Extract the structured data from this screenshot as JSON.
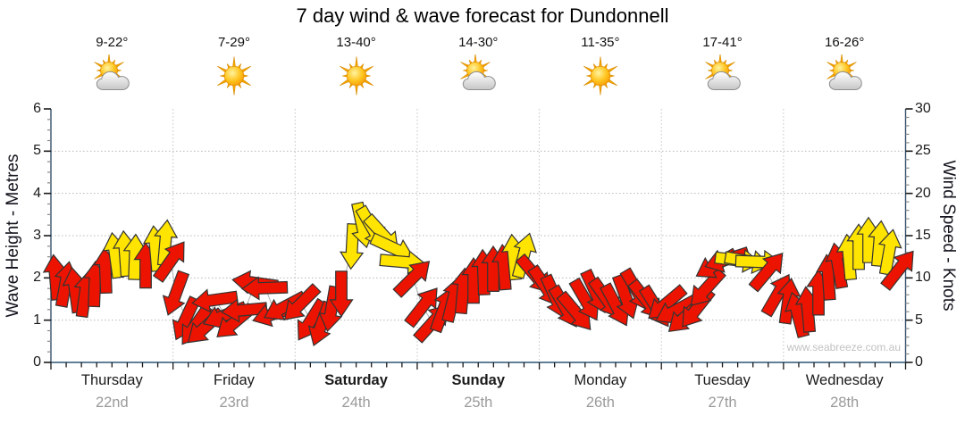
{
  "title": "7 day wind & wave forecast for Dundonnell",
  "watermark": "www.seabreeze.com.au",
  "axes": {
    "left_title": "Wave Height - Metres",
    "right_title": "Wind Speed - Knots",
    "left_ticks": [
      0,
      1,
      2,
      3,
      4,
      5,
      6
    ],
    "right_ticks": [
      0,
      5,
      10,
      15,
      20,
      25,
      30
    ]
  },
  "days": [
    {
      "name": "Thursday",
      "date": "22nd",
      "temp": "9-22°",
      "icon": "sun-cloud",
      "bold": false
    },
    {
      "name": "Friday",
      "date": "23rd",
      "temp": "7-29°",
      "icon": "sun",
      "bold": false
    },
    {
      "name": "Saturday",
      "date": "24th",
      "temp": "13-40°",
      "icon": "sun",
      "bold": true
    },
    {
      "name": "Sunday",
      "date": "25th",
      "temp": "14-30°",
      "icon": "sun-cloud",
      "bold": true
    },
    {
      "name": "Monday",
      "date": "26th",
      "temp": "11-35°",
      "icon": "sun",
      "bold": false
    },
    {
      "name": "Tuesday",
      "date": "27th",
      "temp": "17-41°",
      "icon": "sun-cloud",
      "bold": false
    },
    {
      "name": "Wednesday",
      "date": "28th",
      "temp": "16-26°",
      "icon": "sun-cloud",
      "bold": false
    }
  ],
  "colors": {
    "arrow_red": "#ec1400",
    "arrow_yellow": "#ffe400",
    "arrow_outline": "#333333",
    "axis_line": "#2e5577",
    "side_axis_line": "#38516b",
    "gridline": "#b8b8b8",
    "connector": "#b0b0b0",
    "date_text": "#9a9a9a",
    "watermark_text": "#c2c2c2"
  },
  "chart_data": {
    "type": "wind-arrow-timeseries",
    "title": "7 day wind & wave forecast for Dundonnell",
    "y_left": {
      "label": "Wave Height - Metres",
      "range": [
        0,
        6
      ],
      "gridlines": [
        1,
        2,
        3,
        4,
        5
      ]
    },
    "y_right": {
      "label": "Wind Speed - Knots",
      "range": [
        0,
        30
      ],
      "gridlines": [
        5,
        10,
        15,
        20,
        25
      ]
    },
    "x_categories": [
      "Thursday 22nd",
      "Friday 23rd",
      "Saturday 24th",
      "Sunday 25th",
      "Monday 26th",
      "Tuesday 27th",
      "Wednesday 28th"
    ],
    "arrow_format": [
      "x_px",
      "wind_speed_knots",
      "dir_deg_clockwise_0_is_up",
      "color r=red y=yellow"
    ],
    "arrows": [
      [
        62,
        10.0,
        355,
        "r"
      ],
      [
        73,
        9.2,
        10,
        "r"
      ],
      [
        84,
        8.5,
        352,
        "r"
      ],
      [
        95,
        8.0,
        8,
        "r"
      ],
      [
        106,
        9.2,
        2,
        "r"
      ],
      [
        118,
        10.8,
        358,
        "r"
      ],
      [
        129,
        12.6,
        352,
        "y"
      ],
      [
        140,
        12.8,
        356,
        "y"
      ],
      [
        151,
        12.4,
        2,
        "y"
      ],
      [
        163,
        11.4,
        0,
        "r"
      ],
      [
        174,
        13.4,
        355,
        "y"
      ],
      [
        185,
        14.1,
        5,
        "y"
      ],
      [
        191,
        12.0,
        35,
        "r"
      ],
      [
        197,
        8.2,
        200,
        "r"
      ],
      [
        208,
        5.2,
        205,
        "r"
      ],
      [
        219,
        4.4,
        215,
        "r"
      ],
      [
        230,
        4.2,
        228,
        "r"
      ],
      [
        241,
        7.4,
        262,
        "r"
      ],
      [
        252,
        5.6,
        248,
        "r"
      ],
      [
        263,
        4.8,
        230,
        "r"
      ],
      [
        274,
        6.2,
        265,
        "r"
      ],
      [
        286,
        9.4,
        278,
        "r"
      ],
      [
        297,
        8.8,
        268,
        "r"
      ],
      [
        308,
        5.8,
        252,
        "r"
      ],
      [
        319,
        6.6,
        242,
        "r"
      ],
      [
        337,
        7.0,
        225,
        "r"
      ],
      [
        348,
        5.0,
        212,
        "r"
      ],
      [
        360,
        4.6,
        200,
        "r"
      ],
      [
        371,
        6.4,
        190,
        "r"
      ],
      [
        382,
        8.2,
        180,
        "r"
      ],
      [
        394,
        13.8,
        183,
        "y"
      ],
      [
        405,
        16.3,
        168,
        "y"
      ],
      [
        416,
        16.0,
        150,
        "y"
      ],
      [
        428,
        15.2,
        138,
        "y"
      ],
      [
        439,
        13.6,
        115,
        "y"
      ],
      [
        450,
        11.9,
        95,
        "y"
      ],
      [
        462,
        10.0,
        45,
        "r"
      ],
      [
        473,
        6.6,
        38,
        "r"
      ],
      [
        484,
        4.7,
        42,
        "r"
      ],
      [
        496,
        6.2,
        20,
        "r"
      ],
      [
        507,
        7.4,
        14,
        "r"
      ],
      [
        518,
        8.4,
        5,
        "r"
      ],
      [
        530,
        9.6,
        0,
        "r"
      ],
      [
        541,
        10.6,
        358,
        "r"
      ],
      [
        552,
        11.0,
        0,
        "r"
      ],
      [
        564,
        11.2,
        356,
        "r"
      ],
      [
        575,
        12.4,
        355,
        "y"
      ],
      [
        586,
        12.6,
        15,
        "y"
      ],
      [
        598,
        10.4,
        140,
        "r"
      ],
      [
        610,
        9.0,
        146,
        "r"
      ],
      [
        621,
        7.8,
        156,
        "r"
      ],
      [
        632,
        6.6,
        150,
        "r"
      ],
      [
        644,
        6.0,
        140,
        "r"
      ],
      [
        655,
        7.4,
        150,
        "r"
      ],
      [
        666,
        8.4,
        155,
        "r"
      ],
      [
        678,
        7.6,
        145,
        "r"
      ],
      [
        689,
        6.8,
        152,
        "r"
      ],
      [
        700,
        7.8,
        160,
        "r"
      ],
      [
        712,
        8.6,
        150,
        "r"
      ],
      [
        723,
        7.4,
        142,
        "r"
      ],
      [
        734,
        6.6,
        148,
        "r"
      ],
      [
        746,
        7.0,
        230,
        "r"
      ],
      [
        757,
        6.2,
        242,
        "r"
      ],
      [
        768,
        5.5,
        228,
        "r"
      ],
      [
        780,
        6.4,
        218,
        "r"
      ],
      [
        791,
        8.8,
        222,
        "r"
      ],
      [
        802,
        11.6,
        240,
        "r"
      ],
      [
        814,
        12.2,
        252,
        "r"
      ],
      [
        825,
        12.1,
        97,
        "y"
      ],
      [
        836,
        12.0,
        100,
        "y"
      ],
      [
        848,
        11.9,
        92,
        "y"
      ],
      [
        859,
        10.8,
        40,
        "r"
      ],
      [
        870,
        8.0,
        30,
        "r"
      ],
      [
        882,
        7.2,
        8,
        "r"
      ],
      [
        893,
        5.6,
        345,
        "r"
      ],
      [
        904,
        6.2,
        355,
        "r"
      ],
      [
        916,
        8.2,
        0,
        "r"
      ],
      [
        927,
        10.0,
        356,
        "r"
      ],
      [
        938,
        11.4,
        350,
        "r"
      ],
      [
        950,
        12.4,
        355,
        "y"
      ],
      [
        961,
        13.6,
        0,
        "y"
      ],
      [
        972,
        14.4,
        0,
        "y"
      ],
      [
        984,
        14.0,
        5,
        "y"
      ],
      [
        995,
        13.0,
        10,
        "y"
      ],
      [
        1006,
        11.0,
        38,
        "r"
      ]
    ]
  }
}
